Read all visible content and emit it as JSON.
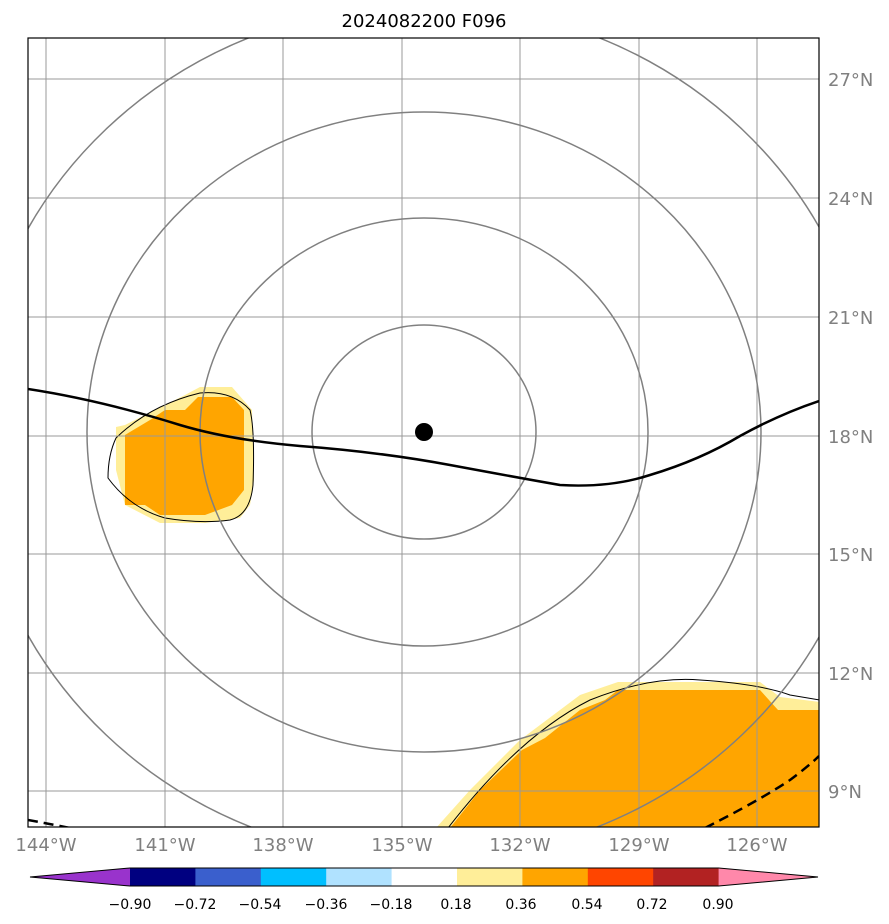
{
  "title": "2024082200 F096",
  "map": {
    "lon_range": [
      -144.6,
      -124.5
    ],
    "lat_range": [
      8.0,
      28.0
    ],
    "lat_labels": [
      "27°N",
      "24°N",
      "21°N",
      "18°N",
      "15°N",
      "12°N",
      "9°N"
    ],
    "lat_values": [
      27,
      24,
      21,
      18,
      15,
      12,
      9
    ],
    "lon_labels": [
      "144°W",
      "141°W",
      "138°W",
      "135°W",
      "132°W",
      "129°W",
      "126°W"
    ],
    "lon_values": [
      -144,
      -141,
      -138,
      -135,
      -132,
      -129,
      -126
    ],
    "grid": true,
    "range_ring_center": {
      "lon": -134.45,
      "lat": 18.1
    },
    "range_ring_count": 4,
    "storm_center_marker": "filled-black-dot"
  },
  "shading_colors": {
    "0.18-0.36": "#ffee99",
    "0.36-0.54": "#ffa500"
  },
  "colorbar": {
    "colors": [
      "#9933cc",
      "#000080",
      "#3a5fcd",
      "#00bfff",
      "#b0e2ff",
      "#ffffff",
      "#ffee99",
      "#ffa500",
      "#ff4500",
      "#b22222",
      "#ff88aa"
    ],
    "tick_labels": [
      "−0.90",
      "−0.72",
      "−0.54",
      "−0.36",
      "−0.18",
      "0.18",
      "0.36",
      "0.54",
      "0.72",
      "0.90"
    ]
  }
}
